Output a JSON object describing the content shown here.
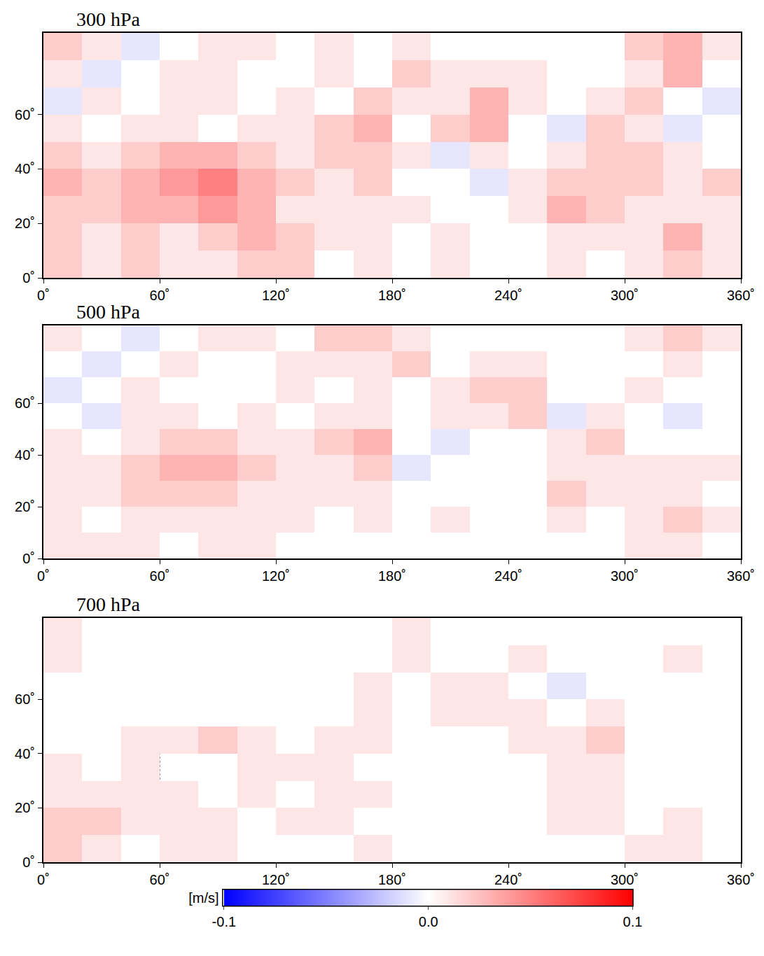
{
  "chart_data": [
    {
      "type": "heatmap",
      "title": "300 hPa",
      "x": [
        10,
        30,
        50,
        70,
        90,
        110,
        130,
        150,
        170,
        190,
        210,
        230,
        250,
        270,
        290,
        310,
        330,
        350
      ],
      "y": [
        5,
        15,
        25,
        35,
        45,
        55,
        65,
        75,
        85
      ],
      "z": [
        [
          0.02,
          0.01,
          0.02,
          0.01,
          0.01,
          0.02,
          0.02,
          0.0,
          0.01,
          0.0,
          0.01,
          0.0,
          0.0,
          0.01,
          0.0,
          0.01,
          0.02,
          0.01
        ],
        [
          0.02,
          0.01,
          0.02,
          0.01,
          0.02,
          0.03,
          0.02,
          0.01,
          0.01,
          0.0,
          0.01,
          0.0,
          0.0,
          0.01,
          0.01,
          0.01,
          0.03,
          0.01
        ],
        [
          0.02,
          0.02,
          0.03,
          0.03,
          0.04,
          0.03,
          0.01,
          0.01,
          0.01,
          0.01,
          0.0,
          0.0,
          0.01,
          0.03,
          0.02,
          0.01,
          0.01,
          0.01
        ],
        [
          0.03,
          0.02,
          0.03,
          0.04,
          0.05,
          0.03,
          0.02,
          0.01,
          0.02,
          0.0,
          0.0,
          -0.01,
          0.01,
          0.02,
          0.02,
          0.02,
          0.01,
          0.02
        ],
        [
          0.02,
          0.01,
          0.02,
          0.03,
          0.03,
          0.02,
          0.01,
          0.02,
          0.02,
          0.01,
          -0.01,
          0.01,
          0.0,
          0.01,
          0.02,
          0.02,
          0.01,
          0.0
        ],
        [
          0.01,
          0.0,
          0.01,
          0.01,
          0.0,
          0.01,
          0.01,
          0.02,
          0.03,
          0.0,
          0.02,
          0.03,
          0.0,
          -0.01,
          0.02,
          0.01,
          -0.01,
          0.0
        ],
        [
          -0.01,
          0.01,
          0.0,
          0.01,
          0.01,
          0.0,
          0.01,
          0.0,
          0.02,
          0.01,
          0.01,
          0.03,
          0.01,
          0.0,
          0.01,
          0.02,
          0.0,
          -0.01
        ],
        [
          0.01,
          -0.01,
          0.0,
          0.01,
          0.01,
          0.0,
          0.0,
          0.01,
          0.0,
          0.02,
          0.01,
          0.01,
          0.01,
          0.0,
          0.0,
          0.01,
          0.03,
          0.0
        ],
        [
          0.02,
          0.01,
          -0.01,
          0.0,
          0.01,
          0.01,
          0.0,
          0.01,
          0.0,
          0.01,
          0.0,
          0.0,
          0.0,
          0.0,
          0.0,
          0.02,
          0.03,
          0.01
        ]
      ],
      "xlim": [
        0,
        360
      ],
      "ylim": [
        0,
        90
      ],
      "xticks": [
        {
          "value": 0,
          "label": "0˚"
        },
        {
          "value": 60,
          "label": "60˚"
        },
        {
          "value": 120,
          "label": "120˚"
        },
        {
          "value": 180,
          "label": "180˚"
        },
        {
          "value": 240,
          "label": "240˚"
        },
        {
          "value": 300,
          "label": "300˚"
        },
        {
          "value": 360,
          "label": "360˚"
        }
      ],
      "yticks": [
        {
          "value": 0,
          "label": "0˚"
        },
        {
          "value": 20,
          "label": "20˚"
        },
        {
          "value": 40,
          "label": "40˚"
        },
        {
          "value": 60,
          "label": "60˚"
        }
      ],
      "grid": true
    },
    {
      "type": "heatmap",
      "title": "500 hPa",
      "x": [
        10,
        30,
        50,
        70,
        90,
        110,
        130,
        150,
        170,
        190,
        210,
        230,
        250,
        270,
        290,
        310,
        330,
        350
      ],
      "y": [
        5,
        15,
        25,
        35,
        45,
        55,
        65,
        75,
        85
      ],
      "z": [
        [
          0.01,
          0.01,
          0.01,
          0.0,
          0.01,
          0.01,
          0.0,
          0.0,
          0.0,
          0.0,
          0.0,
          0.0,
          0.0,
          0.0,
          0.0,
          0.01,
          0.01,
          0.0
        ],
        [
          0.01,
          0.0,
          0.01,
          0.01,
          0.01,
          0.01,
          0.01,
          0.0,
          0.01,
          0.0,
          0.01,
          0.0,
          0.0,
          0.01,
          0.0,
          0.01,
          0.02,
          0.01
        ],
        [
          0.01,
          0.01,
          0.02,
          0.02,
          0.02,
          0.01,
          0.01,
          0.01,
          0.01,
          0.0,
          0.0,
          0.0,
          0.0,
          0.02,
          0.01,
          0.01,
          0.01,
          0.0
        ],
        [
          0.01,
          0.01,
          0.02,
          0.03,
          0.03,
          0.02,
          0.01,
          0.01,
          0.02,
          -0.01,
          0.0,
          0.0,
          0.0,
          0.01,
          0.01,
          0.01,
          0.01,
          0.01
        ],
        [
          0.01,
          0.0,
          0.01,
          0.02,
          0.02,
          0.01,
          0.01,
          0.02,
          0.03,
          0.0,
          -0.01,
          0.0,
          0.0,
          0.01,
          0.02,
          0.0,
          0.0,
          0.0
        ],
        [
          0.0,
          -0.01,
          0.01,
          0.01,
          0.0,
          0.01,
          0.0,
          0.01,
          0.01,
          0.0,
          0.01,
          0.01,
          0.02,
          -0.01,
          0.01,
          0.0,
          -0.01,
          0.0
        ],
        [
          -0.01,
          0.0,
          0.01,
          0.0,
          0.0,
          0.0,
          0.01,
          0.0,
          0.01,
          0.0,
          0.01,
          0.02,
          0.02,
          0.0,
          0.0,
          0.01,
          0.0,
          0.0
        ],
        [
          0.0,
          -0.01,
          0.0,
          0.01,
          0.0,
          0.0,
          0.01,
          0.01,
          0.01,
          0.02,
          0.0,
          0.01,
          0.01,
          0.0,
          0.0,
          0.0,
          0.01,
          0.0
        ],
        [
          0.01,
          0.0,
          -0.01,
          0.0,
          0.01,
          0.01,
          0.0,
          0.02,
          0.02,
          0.01,
          0.0,
          0.0,
          0.0,
          0.0,
          0.0,
          0.01,
          0.02,
          0.01
        ]
      ],
      "xlim": [
        0,
        360
      ],
      "ylim": [
        0,
        90
      ],
      "xticks": [
        {
          "value": 0,
          "label": "0˚"
        },
        {
          "value": 60,
          "label": "60˚"
        },
        {
          "value": 120,
          "label": "120˚"
        },
        {
          "value": 180,
          "label": "180˚"
        },
        {
          "value": 240,
          "label": "240˚"
        },
        {
          "value": 300,
          "label": "300˚"
        },
        {
          "value": 360,
          "label": "360˚"
        }
      ],
      "yticks": [
        {
          "value": 0,
          "label": "0˚"
        },
        {
          "value": 20,
          "label": "20˚"
        },
        {
          "value": 40,
          "label": "40˚"
        },
        {
          "value": 60,
          "label": "60˚"
        }
      ],
      "grid": true
    },
    {
      "type": "heatmap",
      "title": "700 hPa",
      "x": [
        10,
        30,
        50,
        70,
        90,
        110,
        130,
        150,
        170,
        190,
        210,
        230,
        250,
        270,
        290,
        310,
        330,
        350
      ],
      "y": [
        5,
        15,
        25,
        35,
        45,
        55,
        65,
        75,
        85
      ],
      "z": [
        [
          0.02,
          0.01,
          0.0,
          0.01,
          0.01,
          0.0,
          0.0,
          0.0,
          0.01,
          0.0,
          0.0,
          0.0,
          0.0,
          0.0,
          0.0,
          0.01,
          0.01,
          0.0
        ],
        [
          0.02,
          0.02,
          0.01,
          0.01,
          0.01,
          0.0,
          0.01,
          0.01,
          0.0,
          0.0,
          0.0,
          0.0,
          0.0,
          0.01,
          0.01,
          0.0,
          0.01,
          0.0
        ],
        [
          0.01,
          0.01,
          0.01,
          0.01,
          0.0,
          0.01,
          0.0,
          0.01,
          0.01,
          0.0,
          0.0,
          0.0,
          0.0,
          0.01,
          0.01,
          0.0,
          0.0,
          0.0
        ],
        [
          0.01,
          0.0,
          0.01,
          null,
          null,
          0.01,
          0.01,
          0.01,
          0.0,
          0.0,
          0.0,
          0.0,
          0.0,
          0.01,
          0.01,
          0.0,
          0.0,
          0.0
        ],
        [
          0.0,
          0.0,
          0.01,
          0.01,
          0.02,
          0.01,
          0.0,
          0.01,
          0.01,
          0.0,
          0.0,
          0.0,
          0.01,
          0.01,
          0.02,
          0.0,
          0.0,
          0.0
        ],
        [
          0.0,
          0.0,
          0.0,
          0.0,
          0.0,
          0.0,
          0.0,
          0.0,
          0.01,
          0.0,
          0.01,
          0.01,
          0.01,
          0.0,
          0.01,
          0.0,
          0.0,
          0.0
        ],
        [
          0.0,
          0.0,
          0.0,
          0.0,
          0.0,
          0.0,
          0.0,
          0.0,
          0.01,
          0.0,
          0.01,
          0.01,
          0.0,
          -0.01,
          0.0,
          0.0,
          0.0,
          0.0
        ],
        [
          0.01,
          0.0,
          0.0,
          0.0,
          0.0,
          0.0,
          0.0,
          0.0,
          0.0,
          0.01,
          0.0,
          0.0,
          0.01,
          0.0,
          0.0,
          0.0,
          0.01,
          0.0
        ],
        [
          0.01,
          0.0,
          0.0,
          0.0,
          0.0,
          0.0,
          0.0,
          0.0,
          0.0,
          0.01,
          0.0,
          0.0,
          0.0,
          0.0,
          0.0,
          0.0,
          null,
          0.0
        ]
      ],
      "xlim": [
        0,
        360
      ],
      "ylim": [
        0,
        90
      ],
      "xticks": [
        {
          "value": 0,
          "label": "0˚"
        },
        {
          "value": 60,
          "label": "60˚"
        },
        {
          "value": 120,
          "label": "120˚"
        },
        {
          "value": 180,
          "label": "180˚"
        },
        {
          "value": 240,
          "label": "240˚"
        },
        {
          "value": 300,
          "label": "300˚"
        },
        {
          "value": 360,
          "label": "360˚"
        }
      ],
      "yticks": [
        {
          "value": 0,
          "label": "0˚"
        },
        {
          "value": 20,
          "label": "20˚"
        },
        {
          "value": 40,
          "label": "40˚"
        },
        {
          "value": 60,
          "label": "60˚"
        }
      ],
      "grid": true,
      "colorbar": {
        "range": [
          -0.1,
          0.1
        ],
        "ticks": [
          {
            "value": -0.1,
            "label": "-0.1"
          },
          {
            "value": 0,
            "label": "0.0"
          },
          {
            "value": 0.1,
            "label": "0.1"
          }
        ],
        "label": "[m/s]"
      }
    }
  ]
}
